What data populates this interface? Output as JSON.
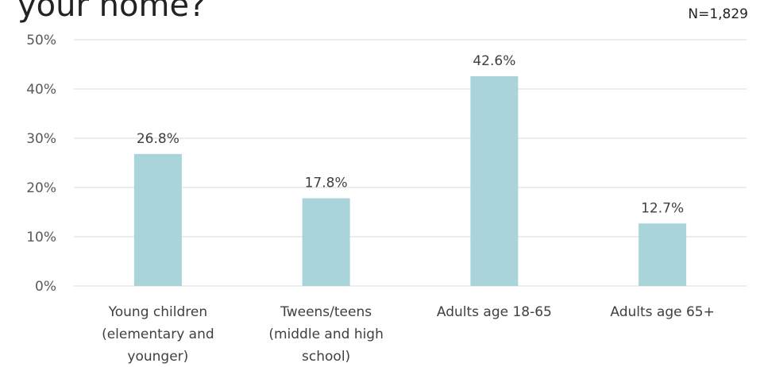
{
  "title": "your home?",
  "sample_size": "N=1,829",
  "colors": {
    "bar": "#a8d4da",
    "grid": "#d9d9d9",
    "text": "#404040"
  },
  "chart_data": {
    "type": "bar",
    "title": "your home?",
    "categories": [
      [
        "Young children",
        "(elementary and",
        "younger)"
      ],
      [
        "Tweens/teens",
        "(middle and high",
        "school)"
      ],
      [
        "Adults age 18-65"
      ],
      [
        "Adults age 65+"
      ]
    ],
    "values": [
      26.8,
      17.8,
      42.6,
      12.7
    ],
    "data_labels": [
      "26.8%",
      "17.8%",
      "42.6%",
      "12.7%"
    ],
    "ylim": [
      0,
      50
    ],
    "yticks": [
      0,
      10,
      20,
      30,
      40,
      50
    ],
    "ytick_labels": [
      "0%",
      "10%",
      "20%",
      "30%",
      "40%",
      "50%"
    ],
    "grid": true,
    "legend": false
  }
}
